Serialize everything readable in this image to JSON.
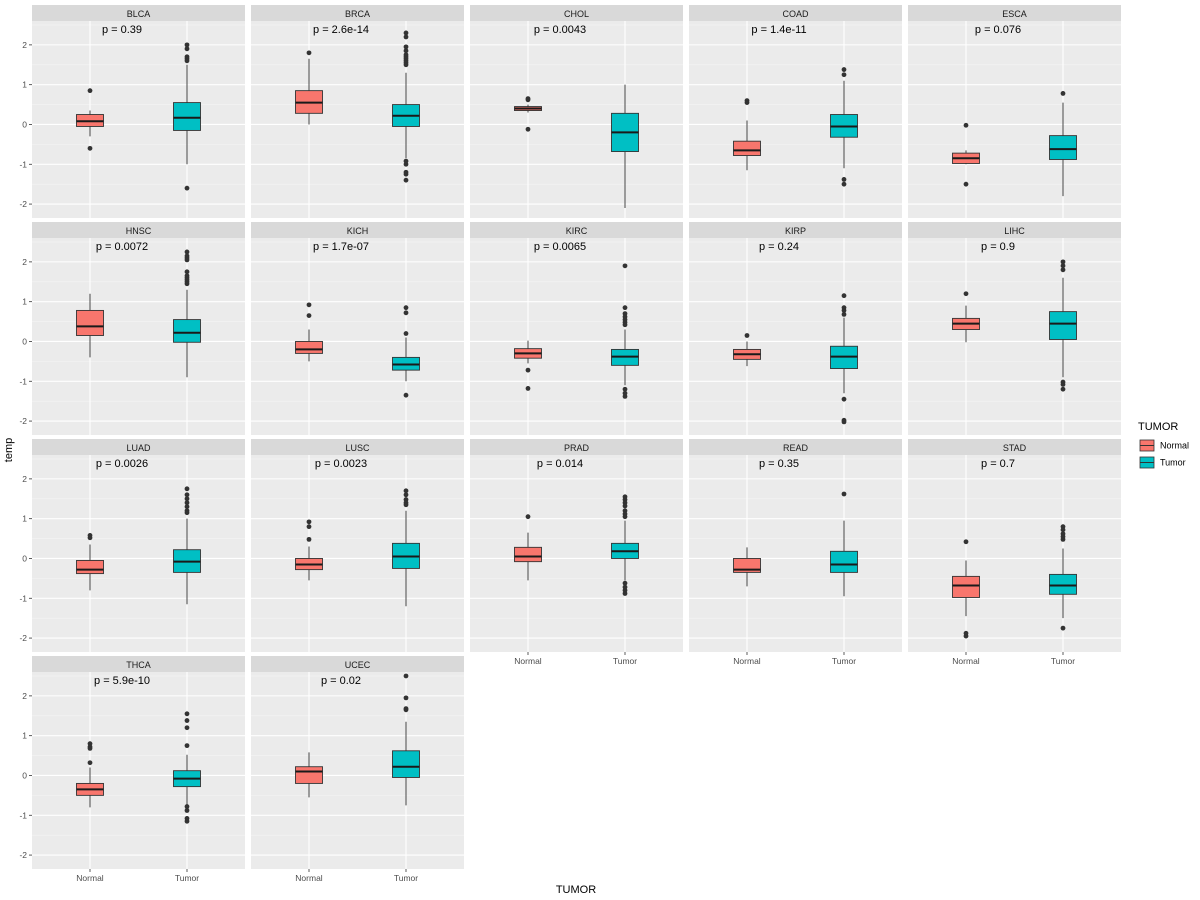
{
  "chart_data": {
    "type": "boxplot",
    "facet_by": "cancer type",
    "xlabel": "TUMOR",
    "ylabel": "temp",
    "ylim": [
      -2.35,
      2.6
    ],
    "yticks": [
      -2,
      -1,
      0,
      1,
      2
    ],
    "categories": [
      "Normal",
      "Tumor"
    ],
    "colors": {
      "Normal": "#F8766D",
      "Tumor": "#00BFC4"
    },
    "legend": {
      "title": "TUMOR",
      "entries": [
        "Normal",
        "Tumor"
      ],
      "position": "right"
    },
    "panels": [
      {
        "name": "BLCA",
        "p": "p = 0.39",
        "Normal": {
          "lower": -0.3,
          "q1": -0.05,
          "median": 0.08,
          "q3": 0.25,
          "upper": 0.35,
          "outliers": [
            0.85,
            -0.6
          ]
        },
        "Tumor": {
          "lower": -1.0,
          "q1": -0.15,
          "median": 0.17,
          "q3": 0.55,
          "upper": 1.5,
          "outliers": [
            2.0,
            1.9,
            1.7,
            1.65,
            1.6,
            -1.6
          ]
        }
      },
      {
        "name": "BRCA",
        "p": "p = 2.6e-14",
        "Normal": {
          "lower": 0.0,
          "q1": 0.28,
          "median": 0.55,
          "q3": 0.85,
          "upper": 1.65,
          "outliers": [
            1.8
          ]
        },
        "Tumor": {
          "lower": -0.85,
          "q1": -0.05,
          "median": 0.22,
          "q3": 0.5,
          "upper": 1.3,
          "outliers": [
            2.3,
            2.2,
            1.95,
            1.85,
            1.75,
            1.7,
            1.65,
            1.6,
            1.55,
            1.5,
            -0.92,
            -1.0,
            -1.2,
            -1.25,
            -1.4
          ]
        }
      },
      {
        "name": "CHOL",
        "p": "p = 0.0043",
        "Normal": {
          "lower": 0.3,
          "q1": 0.35,
          "median": 0.4,
          "q3": 0.45,
          "upper": 0.5,
          "outliers": [
            0.65,
            0.62,
            -0.12
          ]
        },
        "Tumor": {
          "lower": -2.1,
          "q1": -0.68,
          "median": -0.2,
          "q3": 0.28,
          "upper": 1.0,
          "outliers": []
        }
      },
      {
        "name": "COAD",
        "p": "p = 1.4e-11",
        "Normal": {
          "lower": -1.15,
          "q1": -0.78,
          "median": -0.65,
          "q3": -0.42,
          "upper": 0.1,
          "outliers": [
            0.6,
            0.55
          ]
        },
        "Tumor": {
          "lower": -1.1,
          "q1": -0.32,
          "median": -0.05,
          "q3": 0.25,
          "upper": 1.1,
          "outliers": [
            1.38,
            1.25,
            -1.38,
            -1.5
          ]
        }
      },
      {
        "name": "ESCA",
        "p": "p = 0.076",
        "Normal": {
          "lower": -1.0,
          "q1": -0.98,
          "median": -0.85,
          "q3": -0.72,
          "upper": -0.65,
          "outliers": [
            -0.02,
            -1.5
          ]
        },
        "Tumor": {
          "lower": -1.8,
          "q1": -0.88,
          "median": -0.62,
          "q3": -0.28,
          "upper": 0.55,
          "outliers": [
            0.78
          ]
        }
      },
      {
        "name": "HNSC",
        "p": "p = 0.0072",
        "Normal": {
          "lower": -0.4,
          "q1": 0.15,
          "median": 0.38,
          "q3": 0.78,
          "upper": 1.2,
          "outliers": []
        },
        "Tumor": {
          "lower": -0.9,
          "q1": -0.02,
          "median": 0.22,
          "q3": 0.55,
          "upper": 1.3,
          "outliers": [
            2.25,
            2.15,
            2.1,
            2.05,
            1.75,
            1.65,
            1.6,
            1.55,
            1.5,
            1.45
          ]
        }
      },
      {
        "name": "KICH",
        "p": "p = 1.7e-07",
        "Normal": {
          "lower": -0.5,
          "q1": -0.3,
          "median": -0.2,
          "q3": 0.0,
          "upper": 0.3,
          "outliers": [
            0.92,
            0.65
          ]
        },
        "Tumor": {
          "lower": -1.0,
          "q1": -0.72,
          "median": -0.58,
          "q3": -0.4,
          "upper": 0.1,
          "outliers": [
            0.85,
            0.72,
            0.2,
            -1.35
          ]
        }
      },
      {
        "name": "KIRC",
        "p": "p = 0.0065",
        "Normal": {
          "lower": -0.55,
          "q1": -0.42,
          "median": -0.3,
          "q3": -0.18,
          "upper": 0.02,
          "outliers": [
            -0.72,
            -1.18
          ]
        },
        "Tumor": {
          "lower": -1.1,
          "q1": -0.6,
          "median": -0.38,
          "q3": -0.2,
          "upper": 0.3,
          "outliers": [
            1.9,
            0.85,
            0.7,
            0.62,
            0.55,
            0.48,
            0.42,
            -1.2,
            -1.3,
            -1.38
          ]
        }
      },
      {
        "name": "KIRP",
        "p": "p = 0.24",
        "Normal": {
          "lower": -0.62,
          "q1": -0.45,
          "median": -0.32,
          "q3": -0.2,
          "upper": 0.0,
          "outliers": [
            0.15
          ]
        },
        "Tumor": {
          "lower": -1.3,
          "q1": -0.68,
          "median": -0.38,
          "q3": -0.12,
          "upper": 0.6,
          "outliers": [
            1.15,
            0.85,
            0.78,
            0.68,
            -1.45,
            -1.98,
            -2.02
          ]
        }
      },
      {
        "name": "LIHC",
        "p": "p = 0.9",
        "Normal": {
          "lower": -0.02,
          "q1": 0.3,
          "median": 0.45,
          "q3": 0.58,
          "upper": 0.9,
          "outliers": [
            1.2
          ]
        },
        "Tumor": {
          "lower": -0.9,
          "q1": 0.05,
          "median": 0.45,
          "q3": 0.75,
          "upper": 1.6,
          "outliers": [
            2.0,
            1.9,
            1.8,
            -1.02,
            -1.08,
            -1.2
          ]
        }
      },
      {
        "name": "LUAD",
        "p": "p = 0.0026",
        "Normal": {
          "lower": -0.8,
          "q1": -0.38,
          "median": -0.28,
          "q3": -0.05,
          "upper": 0.35,
          "outliers": [
            0.58,
            0.52
          ]
        },
        "Tumor": {
          "lower": -1.15,
          "q1": -0.35,
          "median": -0.08,
          "q3": 0.22,
          "upper": 1.0,
          "outliers": [
            1.75,
            1.6,
            1.5,
            1.4,
            1.3,
            1.2,
            1.15
          ]
        }
      },
      {
        "name": "LUSC",
        "p": "p = 0.0023",
        "Normal": {
          "lower": -0.55,
          "q1": -0.28,
          "median": -0.15,
          "q3": 0.0,
          "upper": 0.3,
          "outliers": [
            0.92,
            0.8,
            0.48
          ]
        },
        "Tumor": {
          "lower": -1.2,
          "q1": -0.25,
          "median": 0.05,
          "q3": 0.38,
          "upper": 1.2,
          "outliers": [
            1.7,
            1.6,
            1.48,
            1.4,
            1.35
          ]
        }
      },
      {
        "name": "PRAD",
        "p": "p = 0.014",
        "Normal": {
          "lower": -0.55,
          "q1": -0.08,
          "median": 0.05,
          "q3": 0.28,
          "upper": 0.65,
          "outliers": [
            1.05
          ]
        },
        "Tumor": {
          "lower": -0.55,
          "q1": 0.0,
          "median": 0.18,
          "q3": 0.38,
          "upper": 0.95,
          "outliers": [
            1.55,
            1.48,
            1.4,
            1.32,
            1.2,
            1.12,
            1.05,
            -0.62,
            -0.72,
            -0.8,
            -0.88
          ]
        }
      },
      {
        "name": "READ",
        "p": "p = 0.35",
        "Normal": {
          "lower": -0.7,
          "q1": -0.35,
          "median": -0.28,
          "q3": 0.0,
          "upper": 0.28,
          "outliers": []
        },
        "Tumor": {
          "lower": -0.95,
          "q1": -0.35,
          "median": -0.15,
          "q3": 0.18,
          "upper": 0.95,
          "outliers": [
            1.62
          ]
        }
      },
      {
        "name": "STAD",
        "p": "p = 0.7",
        "Normal": {
          "lower": -1.45,
          "q1": -0.98,
          "median": -0.68,
          "q3": -0.45,
          "upper": -0.05,
          "outliers": [
            0.42,
            -1.88,
            -1.95
          ]
        },
        "Tumor": {
          "lower": -1.5,
          "q1": -0.9,
          "median": -0.68,
          "q3": -0.4,
          "upper": 0.25,
          "outliers": [
            0.8,
            0.72,
            0.62,
            0.55,
            0.48,
            -1.75
          ]
        }
      },
      {
        "name": "THCA",
        "p": "p = 5.9e-10",
        "Normal": {
          "lower": -0.8,
          "q1": -0.5,
          "median": -0.35,
          "q3": -0.2,
          "upper": 0.2,
          "outliers": [
            0.8,
            0.72,
            0.68,
            0.32
          ]
        },
        "Tumor": {
          "lower": -0.75,
          "q1": -0.28,
          "median": -0.08,
          "q3": 0.12,
          "upper": 0.52,
          "outliers": [
            1.55,
            1.38,
            1.2,
            0.75,
            -0.78,
            -0.88,
            -1.08,
            -1.15
          ]
        }
      },
      {
        "name": "UCEC",
        "p": "p = 0.02",
        "Normal": {
          "lower": -0.55,
          "q1": -0.2,
          "median": 0.1,
          "q3": 0.22,
          "upper": 0.58,
          "outliers": []
        },
        "Tumor": {
          "lower": -0.75,
          "q1": -0.05,
          "median": 0.22,
          "q3": 0.62,
          "upper": 1.35,
          "outliers": [
            2.5,
            1.95,
            1.68,
            1.65
          ]
        }
      }
    ]
  }
}
